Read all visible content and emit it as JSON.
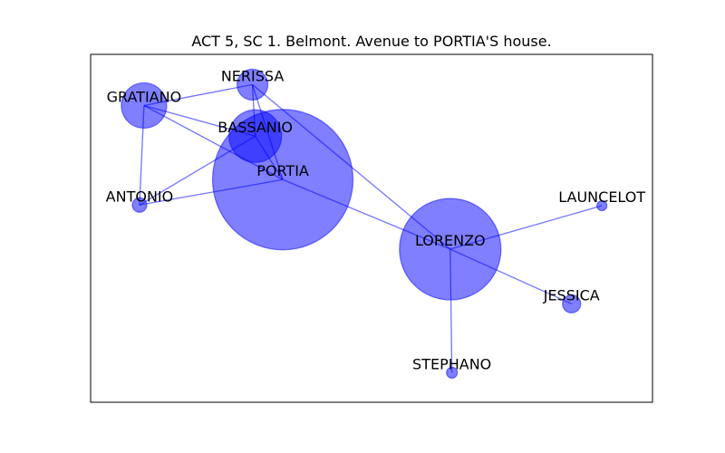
{
  "title": "ACT 5, SC 1. Belmont. Avenue to PORTIA'S house.",
  "style": {
    "node_color": "#0000ff",
    "edge_color": "#0000ff",
    "frame_color": "#000000"
  },
  "chart_data": {
    "type": "network",
    "title": "ACT 5, SC 1. Belmont. Avenue to PORTIA'S house.",
    "nodes": [
      {
        "id": "PORTIA",
        "label": "PORTIA",
        "size": 155,
        "x": 0.342,
        "y": 0.64
      },
      {
        "id": "LORENZO",
        "label": "LORENZO",
        "size": 112,
        "x": 0.64,
        "y": 0.44
      },
      {
        "id": "BASSANIO",
        "label": "BASSANIO",
        "size": 58,
        "x": 0.293,
        "y": 0.765
      },
      {
        "id": "GRATIANO",
        "label": "GRATIANO",
        "size": 50,
        "x": 0.095,
        "y": 0.853
      },
      {
        "id": "NERISSA",
        "label": "NERISSA",
        "size": 34,
        "x": 0.288,
        "y": 0.913
      },
      {
        "id": "JESSICA",
        "label": "JESSICA",
        "size": 20,
        "x": 0.856,
        "y": 0.283
      },
      {
        "id": "ANTONIO",
        "label": "ANTONIO",
        "size": 16,
        "x": 0.087,
        "y": 0.567
      },
      {
        "id": "STEPHANO",
        "label": "STEPHANO",
        "size": 12,
        "x": 0.643,
        "y": 0.085
      },
      {
        "id": "LAUNCELOT",
        "label": "LAUNCELOT",
        "size": 11,
        "x": 0.91,
        "y": 0.565
      }
    ],
    "edges": [
      [
        "PORTIA",
        "BASSANIO"
      ],
      [
        "PORTIA",
        "GRATIANO"
      ],
      [
        "PORTIA",
        "NERISSA"
      ],
      [
        "PORTIA",
        "ANTONIO"
      ],
      [
        "PORTIA",
        "LORENZO"
      ],
      [
        "BASSANIO",
        "GRATIANO"
      ],
      [
        "BASSANIO",
        "NERISSA"
      ],
      [
        "BASSANIO",
        "ANTONIO"
      ],
      [
        "GRATIANO",
        "NERISSA"
      ],
      [
        "GRATIANO",
        "ANTONIO"
      ],
      [
        "NERISSA",
        "LORENZO"
      ],
      [
        "LORENZO",
        "LAUNCELOT"
      ],
      [
        "LORENZO",
        "JESSICA"
      ],
      [
        "LORENZO",
        "STEPHANO"
      ]
    ]
  }
}
